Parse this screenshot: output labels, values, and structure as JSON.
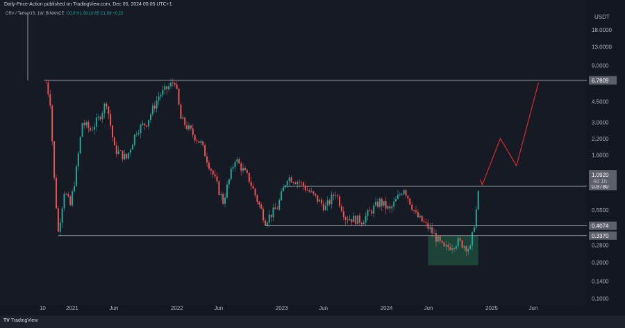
{
  "header": {
    "publish_line": "Daily-Price-Action published on TradingView.com, Dec 05, 2024 00:05 UTC+1",
    "symbol": "CRV / TetherUS, 1W, BINANCE",
    "ohlc": "O0.8  H1.09  L0.85  C1.09  +0.22"
  },
  "footer": {
    "brand": "TradingView"
  },
  "chart_data": {
    "type": "candlestick",
    "title": "",
    "currency_label": "USDT",
    "y_scale": "log",
    "ylim": [
      0.1,
      18
    ],
    "y_ticks": [
      "18.0000",
      "13.0000",
      "9.0000",
      "4.5000",
      "3.0000",
      "2.2000",
      "1.6000",
      "0.5500",
      "0.2800",
      "0.2000",
      "0.1400",
      "0.1000"
    ],
    "y_tick_values": [
      18,
      13,
      9,
      4.5,
      3,
      2.2,
      1.6,
      0.55,
      0.28,
      0.2,
      0.14,
      0.1
    ],
    "x_ticks": [
      {
        "label": "10",
        "date": "2020-10-01"
      },
      {
        "label": "2021",
        "date": "2021-01-01"
      },
      {
        "label": "Jun",
        "date": "2021-06-01"
      },
      {
        "label": "2022",
        "date": "2022-01-01"
      },
      {
        "label": "Jun",
        "date": "2022-06-01"
      },
      {
        "label": "2023",
        "date": "2023-01-01"
      },
      {
        "label": "Jun",
        "date": "2023-06-01"
      },
      {
        "label": "2024",
        "date": "2024-01-01"
      },
      {
        "label": "Jun",
        "date": "2024-06-01"
      },
      {
        "label": "2025",
        "date": "2025-01-01"
      },
      {
        "label": "Jun",
        "date": "2025-06-01"
      }
    ],
    "price_path": [
      [
        "2020-10-12",
        6.5
      ],
      [
        "2020-10-26",
        4.5
      ],
      [
        "2020-11-09",
        1.0
      ],
      [
        "2020-11-23",
        0.36
      ],
      [
        "2020-12-14",
        0.8
      ],
      [
        "2021-01-04",
        0.6
      ],
      [
        "2021-01-25",
        1.2
      ],
      [
        "2021-02-15",
        3.0
      ],
      [
        "2021-03-15",
        2.6
      ],
      [
        "2021-04-12",
        3.2
      ],
      [
        "2021-05-10",
        4.5
      ],
      [
        "2021-06-07",
        1.8
      ],
      [
        "2021-07-19",
        1.5
      ],
      [
        "2021-08-23",
        2.6
      ],
      [
        "2021-09-27",
        3.0
      ],
      [
        "2021-11-08",
        5.0
      ],
      [
        "2021-12-20",
        6.2
      ],
      [
        "2022-01-03",
        6.8
      ],
      [
        "2022-01-24",
        3.2
      ],
      [
        "2022-03-07",
        2.4
      ],
      [
        "2022-04-04",
        2.0
      ],
      [
        "2022-05-16",
        1.1
      ],
      [
        "2022-06-20",
        0.65
      ],
      [
        "2022-08-01",
        1.5
      ],
      [
        "2022-09-19",
        1.0
      ],
      [
        "2022-11-14",
        0.45
      ],
      [
        "2022-12-26",
        0.58
      ],
      [
        "2023-01-30",
        1.05
      ],
      [
        "2023-03-13",
        0.95
      ],
      [
        "2023-06-12",
        0.58
      ],
      [
        "2023-07-17",
        0.78
      ],
      [
        "2023-08-21",
        0.48
      ],
      [
        "2023-10-16",
        0.45
      ],
      [
        "2023-12-18",
        0.65
      ],
      [
        "2024-01-22",
        0.55
      ],
      [
        "2024-03-11",
        0.85
      ],
      [
        "2024-04-22",
        0.5
      ],
      [
        "2024-06-10",
        0.38
      ],
      [
        "2024-07-29",
        0.26
      ],
      [
        "2024-09-16",
        0.3
      ],
      [
        "2024-10-28",
        0.26
      ],
      [
        "2024-11-18",
        0.55
      ],
      [
        "2024-12-02",
        1.0
      ]
    ],
    "projection_path": [
      [
        "2024-12-09",
        0.9
      ],
      [
        "2025-02-10",
        2.2
      ],
      [
        "2025-04-07",
        1.3
      ],
      [
        "2025-06-23",
        6.5
      ]
    ],
    "levels": [
      {
        "price": 6.7809,
        "label": "6.7809",
        "from": "2020-10-05"
      },
      {
        "price": 0.878,
        "label": "0.8780",
        "from": "2023-01-16"
      },
      {
        "price": 0.4074,
        "label": "0.4074",
        "from": "2022-11-14"
      },
      {
        "price": 0.337,
        "label": "0.3370",
        "from": "2020-11-23"
      }
    ],
    "current_price": {
      "label": "1.0920",
      "countdown": "4d 1h",
      "price": 1.092
    },
    "accumulation_zone": {
      "from": "2024-06-03",
      "to": "2024-11-25",
      "high": 0.337,
      "low": 0.19
    },
    "colors": {
      "up": "#26a69a",
      "down": "#ef5350",
      "projection": "#d32f2f",
      "zone": "#1f4d3f",
      "level": "#b2b5be",
      "background": "#161a25"
    }
  }
}
